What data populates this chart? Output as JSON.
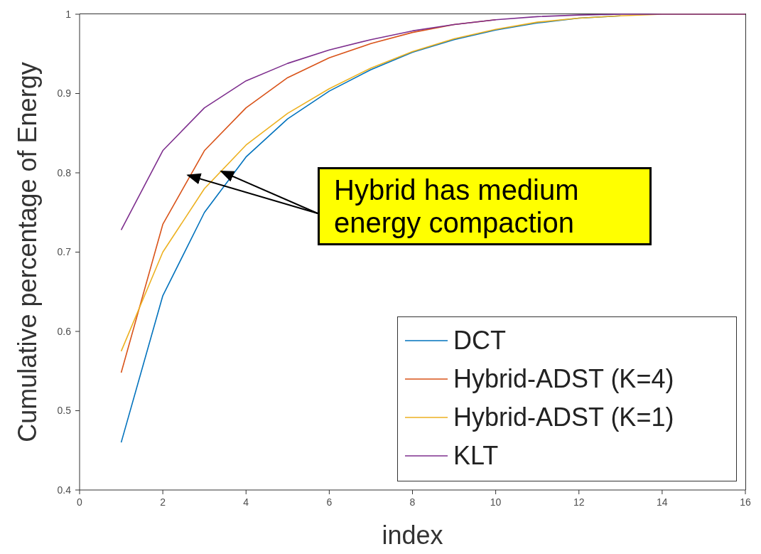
{
  "chart_data": {
    "type": "line",
    "xlabel": "index",
    "ylabel": "Cumulative percentage of Energy",
    "x": [
      1,
      2,
      3,
      4,
      5,
      6,
      7,
      8,
      9,
      10,
      11,
      12,
      13,
      14,
      15,
      16
    ],
    "series": [
      {
        "name": "DCT",
        "color": "#0072bd",
        "values": [
          0.46,
          0.645,
          0.75,
          0.82,
          0.868,
          0.903,
          0.93,
          0.952,
          0.968,
          0.98,
          0.989,
          0.995,
          0.998,
          null,
          null,
          null
        ]
      },
      {
        "name": "Hybrid-ADST (K=4)",
        "color": "#d95319",
        "values": [
          0.548,
          0.735,
          0.828,
          0.882,
          0.92,
          0.945,
          0.963,
          0.977,
          0.987,
          0.993,
          null,
          null,
          null,
          null,
          null,
          null
        ]
      },
      {
        "name": "Hybrid-ADST (K=1)",
        "color": "#edb120",
        "values": [
          0.575,
          0.7,
          0.78,
          0.835,
          0.875,
          0.906,
          0.932,
          0.953,
          0.969,
          0.981,
          0.99,
          0.995,
          0.998,
          1,
          1,
          1
        ]
      },
      {
        "name": "KLT",
        "color": "#7e2f8e",
        "values": [
          0.728,
          0.828,
          0.882,
          0.916,
          0.938,
          0.955,
          0.968,
          0.979,
          0.987,
          0.993,
          0.997,
          0.999,
          1,
          1,
          1,
          1
        ]
      }
    ],
    "xlim": [
      0,
      16
    ],
    "xticks": [
      0,
      2,
      4,
      6,
      8,
      10,
      12,
      14,
      16
    ],
    "ylim": [
      0.4,
      1
    ],
    "yticks": [
      0.4,
      0.5,
      0.6,
      0.7,
      0.8,
      0.9,
      1
    ],
    "grid": false,
    "legend": "bottom right",
    "marker": "none",
    "line_style": "solid",
    "annotations": [
      {
        "text": "Hybrid has medium energy compaction",
        "x": 2.6,
        "y": 0.797
      }
    ]
  }
}
